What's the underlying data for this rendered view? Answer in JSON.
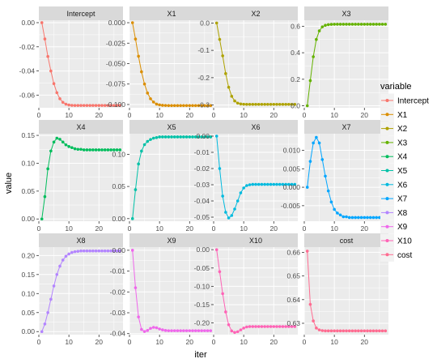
{
  "figure": {
    "ylabel": "value",
    "xlabel": "iter",
    "legend_title": "variable",
    "x_ticks": [
      "0",
      "10",
      "20"
    ],
    "x_tick_values": [
      0,
      10,
      20
    ],
    "panel_bg": "#ebebeb",
    "strip_bg": "#d9d9d9",
    "grid_color": "#ffffff"
  },
  "chart_data": {
    "type": "line",
    "facet": "small-multiples",
    "grid": true,
    "legend_position": "right",
    "x": [
      1,
      2,
      3,
      4,
      5,
      6,
      7,
      8,
      9,
      10,
      11,
      12,
      13,
      14,
      15,
      16,
      17,
      18,
      19,
      20,
      21,
      22,
      23,
      24,
      25,
      26,
      27
    ],
    "xlim": [
      0,
      28
    ],
    "panels": [
      {
        "name": "Intercept",
        "color": "#F8766D",
        "ylim": [
          -0.0705,
          0.002
        ],
        "yticks": [
          0.0,
          -0.02,
          -0.04,
          -0.06
        ],
        "ytick_labels": [
          "0.00",
          "-0.02",
          "-0.04",
          "-0.06"
        ],
        "values": [
          0.0,
          -0.0135,
          -0.028,
          -0.04,
          -0.0505,
          -0.058,
          -0.063,
          -0.066,
          -0.0675,
          -0.0682,
          -0.0685,
          -0.0686,
          -0.0686,
          -0.0686,
          -0.0686,
          -0.0686,
          -0.0686,
          -0.0686,
          -0.0686,
          -0.0686,
          -0.0686,
          -0.0686,
          -0.0686,
          -0.0686,
          -0.0686,
          -0.0686,
          -0.0686
        ]
      },
      {
        "name": "X1",
        "color": "#DB8E00",
        "ylim": [
          -0.104,
          0.003
        ],
        "yticks": [
          0.0,
          -0.025,
          -0.05,
          -0.075,
          -0.1
        ],
        "ytick_labels": [
          "0.000",
          "-0.025",
          "-0.050",
          "-0.075",
          "-0.100"
        ],
        "values": [
          0.0,
          -0.02,
          -0.041,
          -0.06,
          -0.075,
          -0.086,
          -0.093,
          -0.097,
          -0.0995,
          -0.1005,
          -0.101,
          -0.1012,
          -0.1013,
          -0.1013,
          -0.1013,
          -0.1013,
          -0.1013,
          -0.1013,
          -0.1013,
          -0.1013,
          -0.1013,
          -0.1013,
          -0.1013,
          -0.1013,
          -0.1013,
          -0.1013,
          -0.1013
        ]
      },
      {
        "name": "X2",
        "color": "#AEA200",
        "ylim": [
          -0.31,
          0.01
        ],
        "yticks": [
          0.0,
          -0.1,
          -0.2,
          -0.3
        ],
        "ytick_labels": [
          "0.0",
          "-0.1",
          "-0.2",
          "-0.3"
        ],
        "values": [
          0.0,
          -0.06,
          -0.12,
          -0.185,
          -0.235,
          -0.268,
          -0.285,
          -0.293,
          -0.296,
          -0.297,
          -0.2975,
          -0.2975,
          -0.2975,
          -0.2975,
          -0.2975,
          -0.2975,
          -0.2975,
          -0.2975,
          -0.2975,
          -0.2975,
          -0.2975,
          -0.2975,
          -0.2975,
          -0.2975,
          -0.2975,
          -0.2975,
          -0.2975
        ]
      },
      {
        "name": "X3",
        "color": "#64B200",
        "ylim": [
          -0.015,
          0.645
        ],
        "yticks": [
          0.0,
          0.2,
          0.4,
          0.6
        ],
        "ytick_labels": [
          "0.0",
          "0.2",
          "0.4",
          "0.6"
        ],
        "values": [
          0.0,
          0.19,
          0.37,
          0.5,
          0.565,
          0.595,
          0.607,
          0.612,
          0.614,
          0.615,
          0.615,
          0.615,
          0.615,
          0.615,
          0.615,
          0.615,
          0.615,
          0.615,
          0.615,
          0.615,
          0.615,
          0.615,
          0.615,
          0.615,
          0.615,
          0.615,
          0.615
        ]
      },
      {
        "name": "X4",
        "color": "#00BD5C",
        "ylim": [
          -0.004,
          0.153
        ],
        "yticks": [
          0.0,
          0.05,
          0.1,
          0.15
        ],
        "ytick_labels": [
          "0.00",
          "0.05",
          "0.10",
          "0.15"
        ],
        "values": [
          0.0,
          0.04,
          0.09,
          0.122,
          0.138,
          0.145,
          0.143,
          0.138,
          0.133,
          0.13,
          0.128,
          0.126,
          0.125,
          0.125,
          0.124,
          0.124,
          0.124,
          0.124,
          0.124,
          0.124,
          0.124,
          0.124,
          0.124,
          0.124,
          0.124,
          0.124,
          0.124
        ]
      },
      {
        "name": "X5",
        "color": "#00C1A7",
        "ylim": [
          -0.004,
          0.132
        ],
        "yticks": [
          0.0,
          0.05,
          0.1
        ],
        "ytick_labels": [
          "0.00",
          "0.05",
          "0.10"
        ],
        "values": [
          0.0,
          0.045,
          0.085,
          0.105,
          0.115,
          0.12,
          0.123,
          0.125,
          0.126,
          0.127,
          0.127,
          0.127,
          0.127,
          0.127,
          0.127,
          0.127,
          0.127,
          0.127,
          0.127,
          0.127,
          0.127,
          0.127,
          0.127,
          0.127,
          0.127,
          0.127,
          0.127
        ]
      },
      {
        "name": "X6",
        "color": "#00BADE",
        "ylim": [
          -0.0525,
          0.0015
        ],
        "yticks": [
          0.0,
          -0.01,
          -0.02,
          -0.03,
          -0.04,
          -0.05
        ],
        "ytick_labels": [
          "0.00",
          "-0.01",
          "-0.02",
          "-0.03",
          "-0.04",
          "-0.05"
        ],
        "values": [
          0.0,
          -0.02,
          -0.037,
          -0.047,
          -0.0505,
          -0.049,
          -0.045,
          -0.04,
          -0.035,
          -0.032,
          -0.0305,
          -0.03,
          -0.0298,
          -0.0298,
          -0.0298,
          -0.0298,
          -0.0298,
          -0.0298,
          -0.0298,
          -0.0298,
          -0.0298,
          -0.0298,
          -0.0298,
          -0.0298,
          -0.0298,
          -0.0298,
          -0.0298
        ]
      },
      {
        "name": "X7",
        "color": "#00A6FF",
        "ylim": [
          -0.0092,
          0.0145
        ],
        "yticks": [
          0.01,
          0.005,
          0.0,
          -0.005
        ],
        "ytick_labels": [
          "0.010",
          "0.005",
          "0.000",
          "-0.005"
        ],
        "values": [
          0.0,
          0.007,
          0.012,
          0.0135,
          0.012,
          0.0075,
          0.003,
          -0.001,
          -0.004,
          -0.006,
          -0.007,
          -0.0075,
          -0.008,
          -0.008,
          -0.0082,
          -0.0082,
          -0.0082,
          -0.0082,
          -0.0082,
          -0.0082,
          -0.0082,
          -0.0082,
          -0.0082,
          -0.0082,
          -0.0082,
          -0.0082,
          -0.0082
        ]
      },
      {
        "name": "X8",
        "color": "#B385FF",
        "ylim": [
          -0.008,
          0.222
        ],
        "yticks": [
          0.0,
          0.05,
          0.1,
          0.15,
          0.2
        ],
        "ytick_labels": [
          "0.00",
          "0.05",
          "0.10",
          "0.15",
          "0.20"
        ],
        "values": [
          0.0,
          0.02,
          0.05,
          0.085,
          0.12,
          0.15,
          0.172,
          0.188,
          0.198,
          0.204,
          0.208,
          0.21,
          0.211,
          0.212,
          0.212,
          0.212,
          0.212,
          0.212,
          0.212,
          0.212,
          0.212,
          0.212,
          0.212,
          0.212,
          0.212,
          0.212,
          0.212
        ]
      },
      {
        "name": "X9",
        "color": "#EF67EB",
        "ylim": [
          -0.0405,
          0.0015
        ],
        "yticks": [
          0.0,
          -0.01,
          -0.02,
          -0.03,
          -0.04
        ],
        "ytick_labels": [
          "0.00",
          "-0.01",
          "-0.02",
          "-0.03",
          "-0.04"
        ],
        "values": [
          0.0,
          -0.018,
          -0.032,
          -0.038,
          -0.039,
          -0.0385,
          -0.0375,
          -0.037,
          -0.0372,
          -0.0378,
          -0.0382,
          -0.0385,
          -0.0386,
          -0.0386,
          -0.0386,
          -0.0386,
          -0.0386,
          -0.0386,
          -0.0386,
          -0.0386,
          -0.0386,
          -0.0386,
          -0.0386,
          -0.0386,
          -0.0386,
          -0.0386,
          -0.0386
        ]
      },
      {
        "name": "X10",
        "color": "#FF63B6",
        "ylim": [
          -0.232,
          0.007
        ],
        "yticks": [
          0.0,
          -0.05,
          -0.1,
          -0.15,
          -0.2
        ],
        "ytick_labels": [
          "0.00",
          "-0.05",
          "-0.10",
          "-0.15",
          "-0.20"
        ],
        "values": [
          0.0,
          -0.06,
          -0.12,
          -0.17,
          -0.205,
          -0.222,
          -0.226,
          -0.224,
          -0.219,
          -0.214,
          -0.211,
          -0.21,
          -0.21,
          -0.21,
          -0.21,
          -0.21,
          -0.21,
          -0.21,
          -0.21,
          -0.21,
          -0.21,
          -0.21,
          -0.21,
          -0.21,
          -0.21,
          -0.21,
          -0.21
        ]
      },
      {
        "name": "cost",
        "color": "#FF6C91",
        "ylim": [
          0.6252,
          0.6622
        ],
        "yticks": [
          0.66,
          0.65,
          0.64,
          0.63
        ],
        "ytick_labels": [
          "0.66",
          "0.65",
          "0.64",
          "0.63"
        ],
        "values": [
          0.6605,
          0.638,
          0.631,
          0.628,
          0.6272,
          0.6269,
          0.6268,
          0.6268,
          0.6268,
          0.6268,
          0.6268,
          0.6268,
          0.6268,
          0.6268,
          0.6268,
          0.6268,
          0.6268,
          0.6268,
          0.6268,
          0.6268,
          0.6268,
          0.6268,
          0.6268,
          0.6268,
          0.6268,
          0.6268,
          0.6268
        ]
      }
    ]
  }
}
